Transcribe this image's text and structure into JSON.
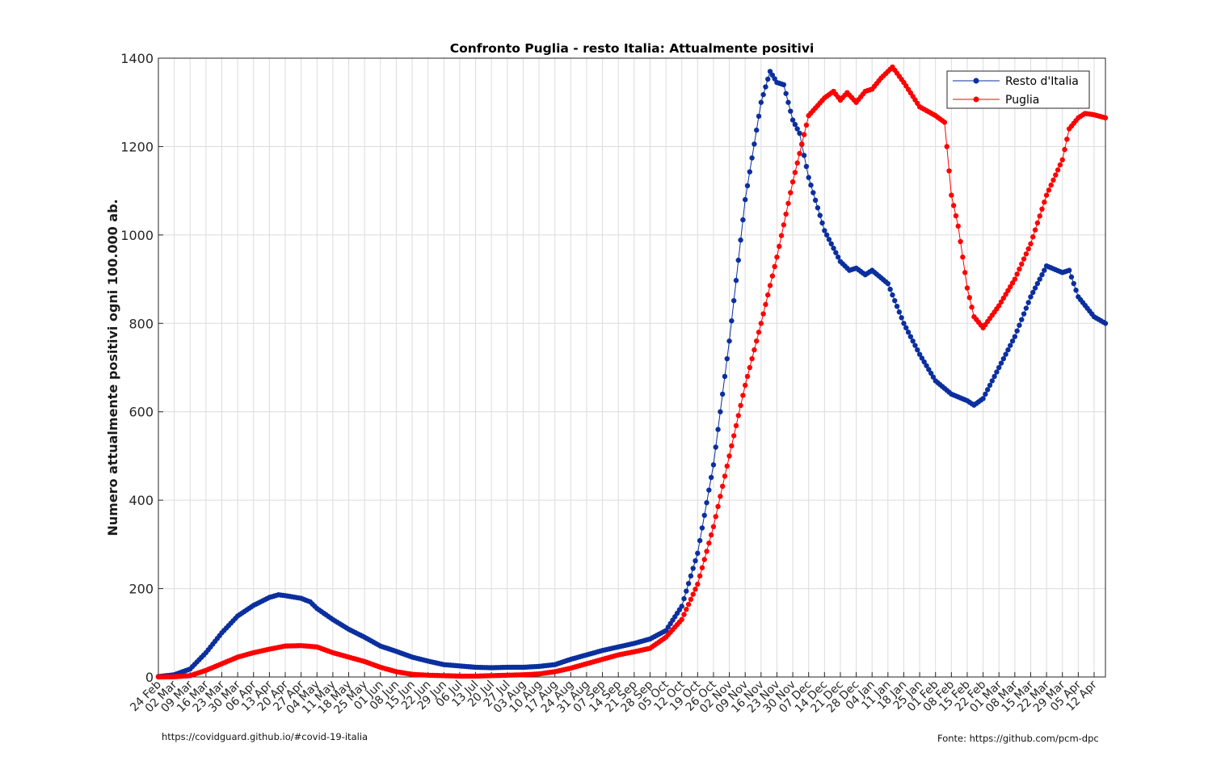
{
  "chart_data": {
    "type": "line",
    "title": "Confronto Puglia - resto Italia: Attualmente positivi",
    "xlabel": "",
    "ylabel": "Numero attualmente positivi ogni 100.000 ab.",
    "ylim": [
      0,
      1400
    ],
    "yticks": [
      0,
      200,
      400,
      600,
      800,
      1000,
      1200,
      1400
    ],
    "grid": true,
    "legend_position": "top-right",
    "x_tick_labels": [
      "24 Feb",
      "02 Mar",
      "09 Mar",
      "16 Mar",
      "23 Mar",
      "30 Mar",
      "06 Apr",
      "13 Apr",
      "20 Apr",
      "27 Apr",
      "04 May",
      "11 May",
      "18 May",
      "25 May",
      "01 Jun",
      "08 Jun",
      "15 Jun",
      "22 Jun",
      "29 Jun",
      "06 Jul",
      "13 Jul",
      "20 Jul",
      "27 Jul",
      "03 Aug",
      "10 Aug",
      "17 Aug",
      "24 Aug",
      "31 Aug",
      "07 Sep",
      "14 Sep",
      "21 Sep",
      "28 Sep",
      "05 Oct",
      "12 Oct",
      "19 Oct",
      "26 Oct",
      "02 Nov",
      "09 Nov",
      "16 Nov",
      "23 Nov",
      "30 Nov",
      "07 Dec",
      "14 Dec",
      "21 Dec",
      "28 Dec",
      "04 Jan",
      "11 Jan",
      "18 Jan",
      "25 Jan",
      "01 Feb",
      "08 Feb",
      "15 Feb",
      "22 Feb",
      "01 Mar",
      "08 Mar",
      "15 Mar",
      "22 Mar",
      "29 Mar",
      "05 Apr",
      "12 Apr"
    ],
    "x_start_date": "2020-02-24",
    "x_end_date": "2021-04-17",
    "series": [
      {
        "name": "Resto d'Italia",
        "color": "#0b2f9e",
        "points": [
          [
            "2020-02-24",
            1
          ],
          [
            "2020-03-02",
            5
          ],
          [
            "2020-03-09",
            18
          ],
          [
            "2020-03-16",
            55
          ],
          [
            "2020-03-23",
            100
          ],
          [
            "2020-03-30",
            138
          ],
          [
            "2020-04-06",
            162
          ],
          [
            "2020-04-13",
            180
          ],
          [
            "2020-04-17",
            186
          ],
          [
            "2020-04-20",
            184
          ],
          [
            "2020-04-27",
            178
          ],
          [
            "2020-05-01",
            170
          ],
          [
            "2020-05-04",
            155
          ],
          [
            "2020-05-11",
            130
          ],
          [
            "2020-05-18",
            108
          ],
          [
            "2020-05-25",
            90
          ],
          [
            "2020-06-01",
            70
          ],
          [
            "2020-06-08",
            58
          ],
          [
            "2020-06-15",
            45
          ],
          [
            "2020-06-22",
            36
          ],
          [
            "2020-06-29",
            28
          ],
          [
            "2020-07-06",
            25
          ],
          [
            "2020-07-13",
            22
          ],
          [
            "2020-07-20",
            21
          ],
          [
            "2020-07-27",
            22
          ],
          [
            "2020-08-03",
            22
          ],
          [
            "2020-08-10",
            24
          ],
          [
            "2020-08-17",
            28
          ],
          [
            "2020-08-24",
            40
          ],
          [
            "2020-08-31",
            50
          ],
          [
            "2020-09-07",
            60
          ],
          [
            "2020-09-14",
            68
          ],
          [
            "2020-09-21",
            76
          ],
          [
            "2020-09-28",
            86
          ],
          [
            "2020-10-05",
            105
          ],
          [
            "2020-10-12",
            160
          ],
          [
            "2020-10-19",
            280
          ],
          [
            "2020-10-26",
            480
          ],
          [
            "2020-11-02",
            760
          ],
          [
            "2020-11-09",
            1080
          ],
          [
            "2020-11-16",
            1300
          ],
          [
            "2020-11-20",
            1370
          ],
          [
            "2020-11-23",
            1345
          ],
          [
            "2020-11-26",
            1340
          ],
          [
            "2020-11-30",
            1260
          ],
          [
            "2020-12-03",
            1230
          ],
          [
            "2020-12-07",
            1130
          ],
          [
            "2020-12-14",
            1010
          ],
          [
            "2020-12-21",
            940
          ],
          [
            "2020-12-25",
            920
          ],
          [
            "2020-12-28",
            925
          ],
          [
            "2021-01-01",
            910
          ],
          [
            "2021-01-04",
            920
          ],
          [
            "2021-01-11",
            890
          ],
          [
            "2021-01-18",
            800
          ],
          [
            "2021-01-25",
            730
          ],
          [
            "2021-02-01",
            670
          ],
          [
            "2021-02-08",
            640
          ],
          [
            "2021-02-15",
            625
          ],
          [
            "2021-02-18",
            615
          ],
          [
            "2021-02-22",
            630
          ],
          [
            "2021-03-01",
            700
          ],
          [
            "2021-03-08",
            770
          ],
          [
            "2021-03-15",
            860
          ],
          [
            "2021-03-22",
            930
          ],
          [
            "2021-03-29",
            915
          ],
          [
            "2021-04-01",
            920
          ],
          [
            "2021-04-05",
            860
          ],
          [
            "2021-04-12",
            815
          ],
          [
            "2021-04-17",
            800
          ]
        ]
      },
      {
        "name": "Puglia",
        "color": "#ff0000",
        "points": [
          [
            "2020-02-24",
            0
          ],
          [
            "2020-03-02",
            0.5
          ],
          [
            "2020-03-09",
            3
          ],
          [
            "2020-03-16",
            15
          ],
          [
            "2020-03-23",
            30
          ],
          [
            "2020-03-30",
            45
          ],
          [
            "2020-04-06",
            55
          ],
          [
            "2020-04-13",
            63
          ],
          [
            "2020-04-20",
            70
          ],
          [
            "2020-04-27",
            71
          ],
          [
            "2020-05-04",
            68
          ],
          [
            "2020-05-11",
            55
          ],
          [
            "2020-05-18",
            45
          ],
          [
            "2020-05-25",
            35
          ],
          [
            "2020-06-01",
            22
          ],
          [
            "2020-06-08",
            12
          ],
          [
            "2020-06-15",
            6
          ],
          [
            "2020-06-22",
            4
          ],
          [
            "2020-06-29",
            3
          ],
          [
            "2020-07-06",
            2
          ],
          [
            "2020-07-13",
            2
          ],
          [
            "2020-07-20",
            3
          ],
          [
            "2020-07-27",
            4
          ],
          [
            "2020-08-03",
            5
          ],
          [
            "2020-08-10",
            7
          ],
          [
            "2020-08-17",
            12
          ],
          [
            "2020-08-24",
            20
          ],
          [
            "2020-08-31",
            30
          ],
          [
            "2020-09-07",
            40
          ],
          [
            "2020-09-14",
            50
          ],
          [
            "2020-09-21",
            57
          ],
          [
            "2020-09-28",
            65
          ],
          [
            "2020-10-05",
            90
          ],
          [
            "2020-10-12",
            130
          ],
          [
            "2020-10-19",
            210
          ],
          [
            "2020-10-26",
            340
          ],
          [
            "2020-11-02",
            500
          ],
          [
            "2020-11-09",
            660
          ],
          [
            "2020-11-16",
            800
          ],
          [
            "2020-11-23",
            950
          ],
          [
            "2020-11-30",
            1120
          ],
          [
            "2020-12-07",
            1270
          ],
          [
            "2020-12-14",
            1310
          ],
          [
            "2020-12-18",
            1325
          ],
          [
            "2020-12-21",
            1305
          ],
          [
            "2020-12-24",
            1322
          ],
          [
            "2020-12-28",
            1300
          ],
          [
            "2021-01-01",
            1325
          ],
          [
            "2021-01-04",
            1330
          ],
          [
            "2021-01-08",
            1355
          ],
          [
            "2021-01-13",
            1380
          ],
          [
            "2021-01-18",
            1345
          ],
          [
            "2021-01-25",
            1290
          ],
          [
            "2021-02-01",
            1270
          ],
          [
            "2021-02-05",
            1255
          ],
          [
            "2021-02-08",
            1090
          ],
          [
            "2021-02-11",
            1020
          ],
          [
            "2021-02-15",
            880
          ],
          [
            "2021-02-18",
            815
          ],
          [
            "2021-02-22",
            790
          ],
          [
            "2021-03-01",
            840
          ],
          [
            "2021-03-08",
            900
          ],
          [
            "2021-03-15",
            980
          ],
          [
            "2021-03-22",
            1090
          ],
          [
            "2021-03-29",
            1170
          ],
          [
            "2021-04-01",
            1240
          ],
          [
            "2021-04-05",
            1265
          ],
          [
            "2021-04-08",
            1275
          ],
          [
            "2021-04-12",
            1272
          ],
          [
            "2021-04-17",
            1265
          ]
        ]
      }
    ]
  },
  "footer": {
    "left": "https://covidguard.github.io/#covid-19-italia",
    "right": "Fonte: https://github.com/pcm-dpc"
  }
}
